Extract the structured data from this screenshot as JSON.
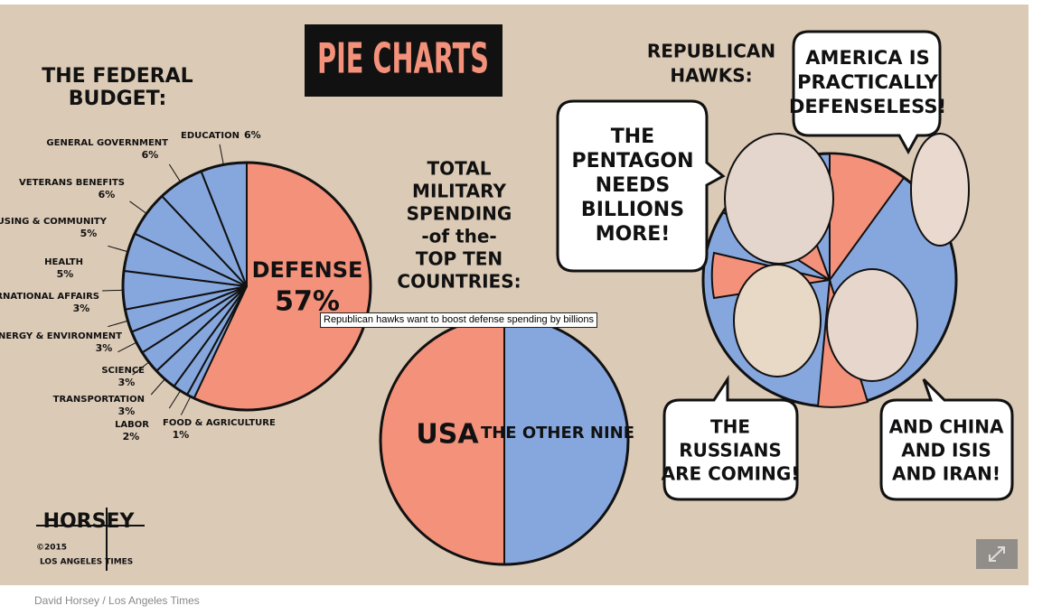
{
  "header": {
    "title": "PIE CHARTS"
  },
  "chart_data": [
    {
      "type": "pie",
      "title": [
        "THE FEDERAL",
        "BUDGET:"
      ],
      "categories": [
        "DEFENSE",
        "FOOD & AGRICULTURE",
        "LABOR",
        "TRANSPORTATION",
        "SCIENCE",
        "ENERGY & ENVIRONMENT",
        "INTERNATIONAL AFFAIRS",
        "HEALTH",
        "HOUSING & COMMUNITY",
        "VETERANS BENEFITS",
        "GENERAL GOVERNMENT",
        "EDUCATION"
      ],
      "values": [
        57,
        1,
        2,
        3,
        3,
        3,
        3,
        5,
        5,
        6,
        6,
        6
      ],
      "value_labels": [
        "57%",
        "1%",
        "2%",
        "3%",
        "3%",
        "3%",
        "3%",
        "5%",
        "5%",
        "6%",
        "6%",
        "6%"
      ],
      "colors": [
        "#f3917b",
        "#86a7de",
        "#86a7de",
        "#86a7de",
        "#86a7de",
        "#86a7de",
        "#86a7de",
        "#86a7de",
        "#86a7de",
        "#86a7de",
        "#86a7de",
        "#86a7de"
      ]
    },
    {
      "type": "pie",
      "title": [
        "TOTAL",
        "MILITARY",
        "SPENDING",
        "-of the-",
        "TOP TEN",
        "COUNTRIES:"
      ],
      "categories": [
        "THE OTHER NINE",
        "USA"
      ],
      "values": [
        50,
        50
      ],
      "colors": [
        "#86a7de",
        "#f3917b"
      ]
    }
  ],
  "hawks": {
    "title": [
      "REPUBLICAN",
      "HAWKS:"
    ],
    "bubbles": [
      [
        "THE",
        "PENTAGON",
        "NEEDS",
        "BILLIONS",
        "MORE!"
      ],
      [
        "AMERICA IS",
        "PRACTICALLY",
        "DEFENSELESS!"
      ],
      [
        "THE",
        "RUSSIANS",
        "ARE COMING!"
      ],
      [
        "AND CHINA",
        "AND ISIS",
        "AND IRAN!"
      ]
    ]
  },
  "signature": {
    "name": "HORSEY",
    "copyright": "©2015",
    "paper": "LOS ANGELES TIMES"
  },
  "tooltip": "Republican hawks want to boost defense spending by billions",
  "caption": "David Horsey / Los Angeles Times"
}
